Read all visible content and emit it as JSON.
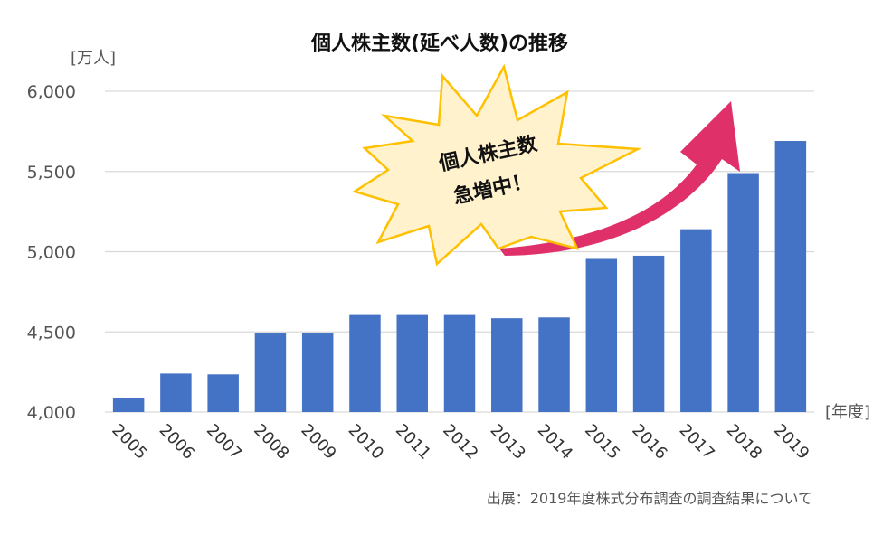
{
  "chart_data": {
    "type": "bar",
    "title": "個人株主数(延べ人数)の推移",
    "ylabel": "[万人]",
    "xlabel": "[年度]",
    "categories": [
      "2005",
      "2006",
      "2007",
      "2008",
      "2009",
      "2010",
      "2011",
      "2012",
      "2013",
      "2014",
      "2015",
      "2016",
      "2017",
      "2018",
      "2019"
    ],
    "values": [
      4090,
      4240,
      4235,
      4490,
      4490,
      4605,
      4605,
      4605,
      4585,
      4590,
      4955,
      4975,
      5140,
      5490,
      5690
    ],
    "ylim": [
      4000,
      6000
    ],
    "yticks": [
      "4,000",
      "4,500",
      "5,000",
      "5,500",
      "6,000"
    ],
    "grid": true,
    "bar_color": "#4472C4",
    "callout": {
      "line1": "個人株主数",
      "line2": "急増中！",
      "fill": "#FFF2CC",
      "stroke": "#FFC000"
    },
    "arrow_color": "#E0306A",
    "source": "出展：2019年度株式分布調査の調査結果について"
  }
}
